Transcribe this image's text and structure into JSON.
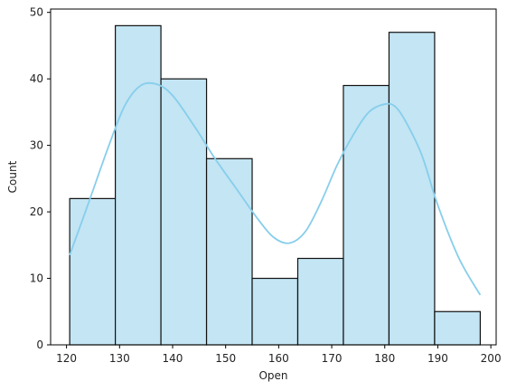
{
  "chart_data": {
    "type": "bar",
    "subtype": "histogram-with-kde",
    "title": "",
    "xlabel": "Open",
    "ylabel": "Count",
    "xlim": [
      117,
      201
    ],
    "ylim": [
      0,
      50.5
    ],
    "x_ticks": [
      120,
      130,
      140,
      150,
      160,
      170,
      180,
      190,
      200
    ],
    "y_ticks": [
      0,
      10,
      20,
      30,
      40,
      50
    ],
    "grid": false,
    "legend": "none",
    "bins": [
      {
        "start": 120.6,
        "end": 129.2,
        "count": 22
      },
      {
        "start": 129.2,
        "end": 137.8,
        "count": 48
      },
      {
        "start": 137.8,
        "end": 146.4,
        "count": 40
      },
      {
        "start": 146.4,
        "end": 155.0,
        "count": 28
      },
      {
        "start": 155.0,
        "end": 163.6,
        "count": 10
      },
      {
        "start": 163.6,
        "end": 172.2,
        "count": 13
      },
      {
        "start": 172.2,
        "end": 180.8,
        "count": 39
      },
      {
        "start": 180.8,
        "end": 189.4,
        "count": 47
      },
      {
        "start": 189.4,
        "end": 198.0,
        "count": 5
      }
    ],
    "kde": {
      "x": [
        120.6,
        124,
        128,
        131,
        134,
        137,
        140,
        144,
        148,
        152,
        156,
        159,
        162,
        165,
        168,
        171,
        174,
        177,
        180,
        182,
        184,
        187,
        190,
        194,
        198
      ],
      "y": [
        13.5,
        21,
        30,
        36,
        39,
        39.2,
        37.5,
        33,
        28,
        23.5,
        19,
        16.2,
        15.3,
        17,
        21.5,
        27,
        31.5,
        35,
        36.2,
        35.8,
        33.5,
        28.5,
        21,
        13,
        7.5
      ]
    },
    "colors": {
      "bar_fill": "#c3e5f4",
      "bar_edge": "#111111",
      "kde_line": "#87ceeb",
      "axis": "#000000"
    }
  }
}
